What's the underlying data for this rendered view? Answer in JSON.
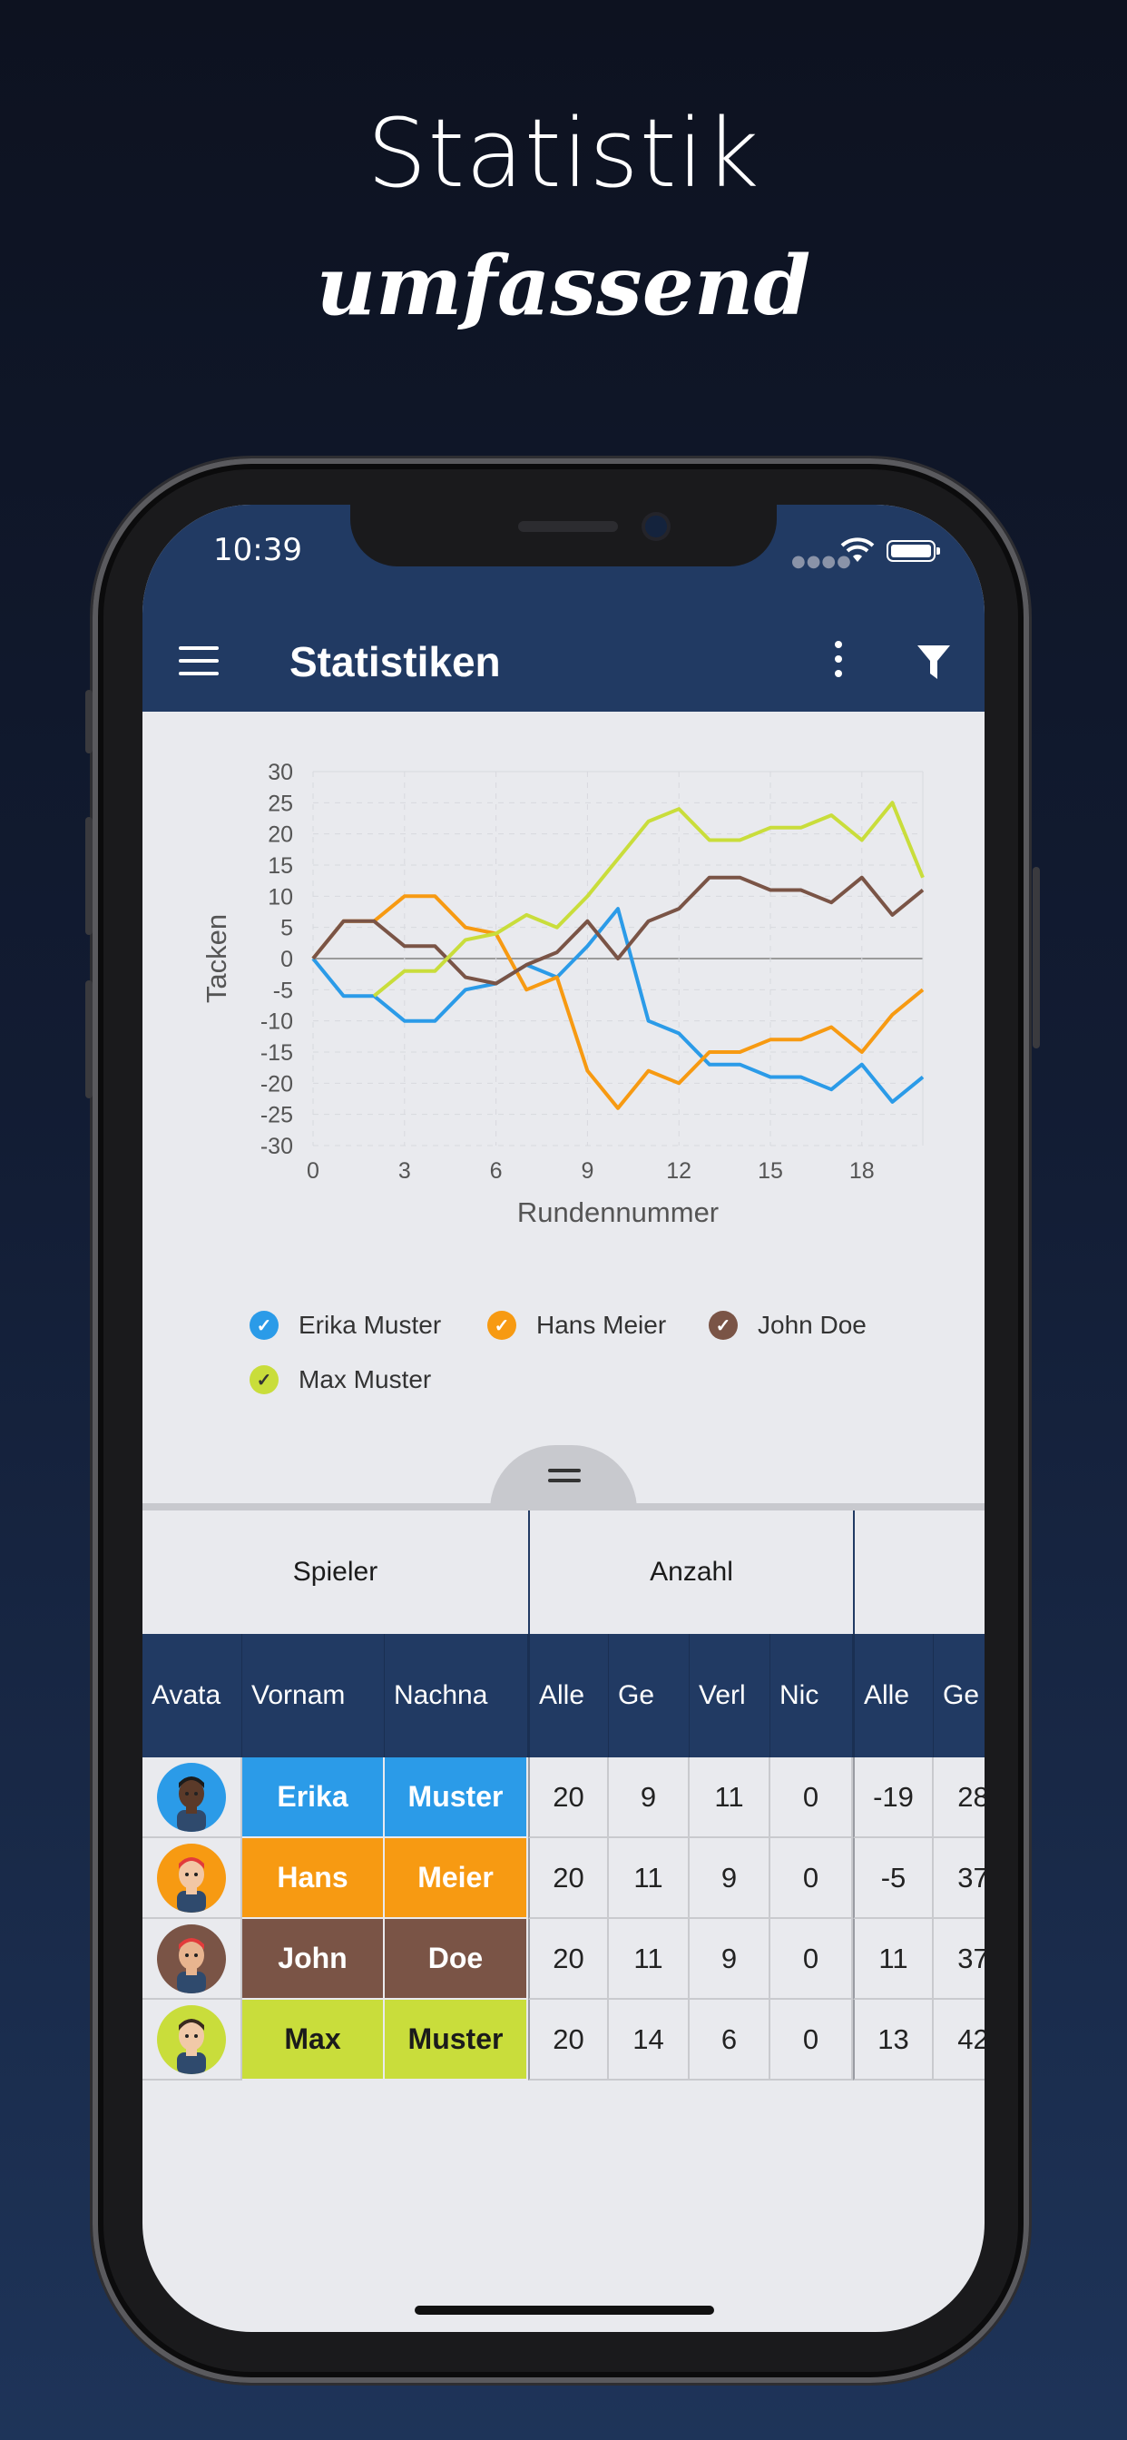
{
  "promo": {
    "title": "Statistik",
    "subtitle": "umfassend"
  },
  "status_bar": {
    "time": "10:39"
  },
  "app_bar": {
    "title": "Statistiken"
  },
  "colors": {
    "erika": "#2b9be8",
    "hans": "#f79a12",
    "john": "#7a5446",
    "max": "#c9dd3b",
    "navy": "#213a63"
  },
  "chart_data": {
    "type": "line",
    "xlabel": "Rundennummer",
    "ylabel": "Tacken",
    "xlim": [
      0,
      20
    ],
    "ylim": [
      -30,
      30
    ],
    "x_ticks": [
      "0",
      "3",
      "6",
      "9",
      "12",
      "15",
      "18"
    ],
    "y_ticks": [
      "30",
      "25",
      "20",
      "15",
      "10",
      "5",
      "0",
      "-5",
      "-10",
      "-15",
      "-20",
      "-25",
      "-30"
    ],
    "x": [
      0,
      1,
      2,
      3,
      4,
      5,
      6,
      7,
      8,
      9,
      10,
      11,
      12,
      13,
      14,
      15,
      16,
      17,
      18,
      19,
      20
    ],
    "series": [
      {
        "name": "Erika Muster",
        "color": "#2b9be8",
        "values": [
          0,
          -6,
          -6,
          -10,
          -10,
          -5,
          -4,
          -1,
          -3,
          2,
          8,
          -10,
          -12,
          -17,
          -17,
          -19,
          -19,
          -21,
          -17,
          -23,
          -19
        ]
      },
      {
        "name": "Hans Meier",
        "color": "#f79a12",
        "values": [
          0,
          6,
          6,
          10,
          10,
          5,
          4,
          -5,
          -3,
          -18,
          -24,
          -18,
          -20,
          -15,
          -15,
          -13,
          -13,
          -11,
          -15,
          -9,
          -5
        ]
      },
      {
        "name": "John Doe",
        "color": "#7a5446",
        "values": [
          0,
          6,
          6,
          2,
          2,
          -3,
          -4,
          -1,
          1,
          6,
          0,
          6,
          8,
          13,
          13,
          11,
          11,
          9,
          13,
          7,
          11
        ]
      },
      {
        "name": "Max Muster",
        "color": "#c9dd3b",
        "values": [
          null,
          null,
          -6,
          -2,
          -2,
          3,
          4,
          7,
          5,
          10,
          16,
          22,
          24,
          19,
          19,
          21,
          21,
          23,
          19,
          25,
          13
        ]
      }
    ],
    "legend_position": "bottom",
    "grid": true
  },
  "table": {
    "groups": [
      "Spieler",
      "Anzahl",
      ""
    ],
    "columns": [
      "Avata",
      "Vornam",
      "Nachna",
      "Alle",
      "Ge",
      "Verl",
      "Nic",
      "Alle",
      "Ge"
    ],
    "rows": [
      {
        "first": "Erika",
        "last": "Muster",
        "alle": "20",
        "ge": "9",
        "verl": "11",
        "nic": "0",
        "alle2": "-19",
        "ge2": "28"
      },
      {
        "first": "Hans",
        "last": "Meier",
        "alle": "20",
        "ge": "11",
        "verl": "9",
        "nic": "0",
        "alle2": "-5",
        "ge2": "37"
      },
      {
        "first": "John",
        "last": "Doe",
        "alle": "20",
        "ge": "11",
        "verl": "9",
        "nic": "0",
        "alle2": "11",
        "ge2": "37"
      },
      {
        "first": "Max",
        "last": "Muster",
        "alle": "20",
        "ge": "14",
        "verl": "6",
        "nic": "0",
        "alle2": "13",
        "ge2": "42"
      }
    ]
  }
}
